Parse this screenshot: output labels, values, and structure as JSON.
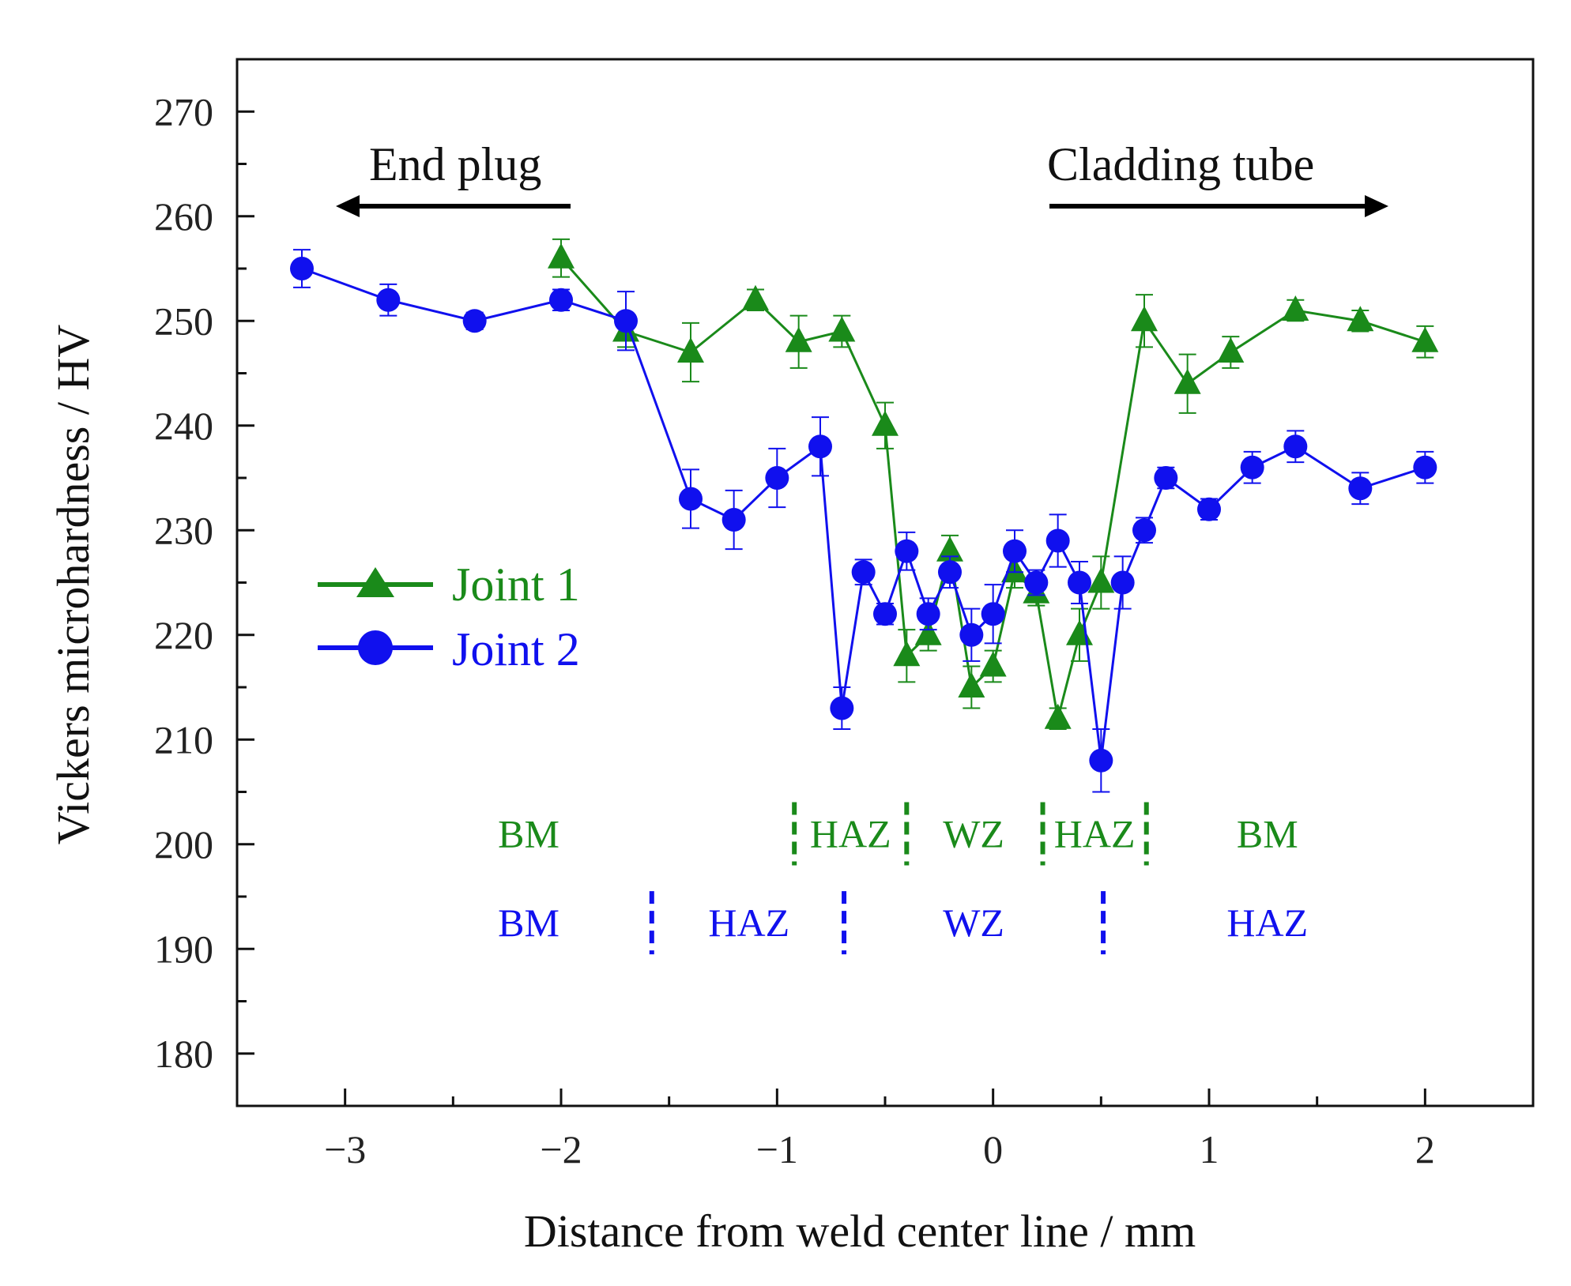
{
  "chart_data": {
    "type": "line",
    "xlabel": "Distance from weld center line / mm",
    "ylabel": "Vickers microhardness / HV",
    "xlim": [
      -3.5,
      2.5
    ],
    "ylim": [
      175,
      275
    ],
    "xticks": [
      -3,
      -2,
      -1,
      0,
      1,
      2
    ],
    "xtick_labels": [
      "−3",
      "−2",
      "−1",
      "0",
      "1",
      "2"
    ],
    "yticks": [
      180,
      190,
      200,
      210,
      220,
      230,
      240,
      250,
      260,
      270
    ],
    "ytick_labels": [
      "180",
      "190",
      "200",
      "210",
      "220",
      "230",
      "240",
      "250",
      "260",
      "270"
    ],
    "annotations": {
      "end_plug": "End plug",
      "cladding_tube": "Cladding tube"
    },
    "series": [
      {
        "name": "Joint 1",
        "color": "#1a8a1a",
        "marker": "triangle",
        "x": [
          -2.0,
          -1.7,
          -1.4,
          -1.1,
          -0.9,
          -0.7,
          -0.5,
          -0.4,
          -0.3,
          -0.2,
          -0.1,
          0.0,
          0.1,
          0.2,
          0.3,
          0.4,
          0.5,
          0.7,
          0.9,
          1.1,
          1.4,
          1.7,
          2.0
        ],
        "y": [
          256,
          249,
          247,
          252,
          248,
          249,
          240,
          218,
          220,
          228,
          215,
          217,
          226,
          224,
          212,
          220,
          225,
          250,
          244,
          247,
          251,
          250,
          248
        ],
        "err": [
          1.8,
          1.5,
          2.8,
          1.0,
          2.5,
          1.5,
          2.2,
          2.5,
          1.5,
          1.5,
          2.0,
          1.5,
          1.5,
          1.2,
          1.0,
          2.5,
          2.5,
          2.5,
          2.8,
          1.5,
          1.0,
          1.0,
          1.5
        ]
      },
      {
        "name": "Joint 2",
        "color": "#1010ee",
        "marker": "circle",
        "x": [
          -3.2,
          -2.8,
          -2.4,
          -2.0,
          -1.7,
          -1.4,
          -1.2,
          -1.0,
          -0.8,
          -0.7,
          -0.6,
          -0.5,
          -0.4,
          -0.3,
          -0.2,
          -0.1,
          0.0,
          0.1,
          0.2,
          0.3,
          0.4,
          0.5,
          0.6,
          0.7,
          0.8,
          1.0,
          1.2,
          1.4,
          1.7,
          2.0
        ],
        "y": [
          255,
          252,
          250,
          252,
          250,
          233,
          231,
          235,
          238,
          213,
          226,
          222,
          228,
          222,
          226,
          220,
          222,
          228,
          225,
          229,
          225,
          208,
          225,
          230,
          235,
          232,
          236,
          238,
          234,
          236
        ],
        "err": [
          1.8,
          1.5,
          0.8,
          1.0,
          2.8,
          2.8,
          2.8,
          2.8,
          2.8,
          2.0,
          1.2,
          1.0,
          1.8,
          1.5,
          1.5,
          2.5,
          2.8,
          2.0,
          1.2,
          2.5,
          2.0,
          3.0,
          2.5,
          1.2,
          1.0,
          1.0,
          1.5,
          1.5,
          1.5,
          1.5
        ]
      }
    ],
    "zones": {
      "joint1": {
        "color": "#1a8a1a",
        "y": 201,
        "dividers_x": [
          -0.92,
          -0.4,
          0.23,
          0.71
        ],
        "labels": [
          {
            "text": "BM",
            "x": -2.15
          },
          {
            "text": "HAZ",
            "x": -0.66
          },
          {
            "text": "WZ",
            "x": -0.09
          },
          {
            "text": "HAZ",
            "x": 0.47
          },
          {
            "text": "BM",
            "x": 1.27
          }
        ]
      },
      "joint2": {
        "color": "#1010ee",
        "y": 192.5,
        "dividers_x": [
          -1.58,
          -0.69,
          0.51
        ],
        "labels": [
          {
            "text": "BM",
            "x": -2.15
          },
          {
            "text": "HAZ",
            "x": -1.13
          },
          {
            "text": "WZ",
            "x": -0.09
          },
          {
            "text": "HAZ",
            "x": 1.27
          }
        ]
      }
    }
  }
}
